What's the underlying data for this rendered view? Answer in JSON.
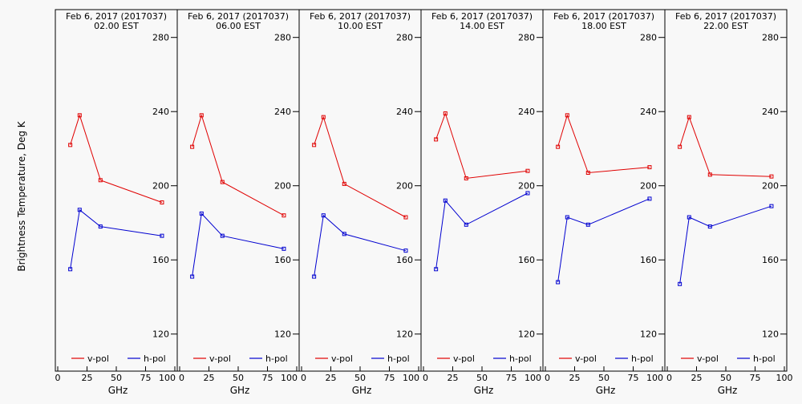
{
  "figure": {
    "ylabel": "Brightness Temperature, Deg K",
    "background": "#f8f8f8",
    "axis_color": "#000000"
  },
  "chart_data": [
    {
      "type": "line",
      "title_date": "Feb  6, 2017 (2017037)",
      "title_time": "02.00 EST",
      "xlabel": "GHz",
      "xlim": [
        0,
        100
      ],
      "ylim": [
        100,
        295
      ],
      "xticks": [
        "0",
        "25",
        "50",
        "75",
        "100"
      ],
      "yticks": [
        "120",
        "160",
        "200",
        "240",
        "280"
      ],
      "legend_position": "bottom",
      "x": [
        10.7,
        18.7,
        36.5,
        89.0
      ],
      "series": [
        {
          "name": "v-pol",
          "color": "#e00000",
          "values": [
            222,
            238,
            203,
            191
          ]
        },
        {
          "name": "h-pol",
          "color": "#0000d0",
          "values": [
            155,
            187,
            178,
            173
          ]
        }
      ]
    },
    {
      "type": "line",
      "title_date": "Feb  6, 2017 (2017037)",
      "title_time": "06.00 EST",
      "xlabel": "GHz",
      "xlim": [
        0,
        100
      ],
      "ylim": [
        100,
        295
      ],
      "xticks": [
        "0",
        "25",
        "50",
        "75",
        "100"
      ],
      "yticks": [
        "120",
        "160",
        "200",
        "240",
        "280"
      ],
      "legend_position": "bottom",
      "x": [
        10.7,
        18.7,
        36.5,
        89.0
      ],
      "series": [
        {
          "name": "v-pol",
          "color": "#e00000",
          "values": [
            221,
            238,
            202,
            184
          ]
        },
        {
          "name": "h-pol",
          "color": "#0000d0",
          "values": [
            151,
            185,
            173,
            166
          ]
        }
      ]
    },
    {
      "type": "line",
      "title_date": "Feb  6, 2017 (2017037)",
      "title_time": "10.00 EST",
      "xlabel": "GHz",
      "xlim": [
        0,
        100
      ],
      "ylim": [
        100,
        295
      ],
      "xticks": [
        "0",
        "25",
        "50",
        "75",
        "100"
      ],
      "yticks": [
        "120",
        "160",
        "200",
        "240",
        "280"
      ],
      "legend_position": "bottom",
      "x": [
        10.7,
        18.7,
        36.5,
        89.0
      ],
      "series": [
        {
          "name": "v-pol",
          "color": "#e00000",
          "values": [
            222,
            237,
            201,
            183
          ]
        },
        {
          "name": "h-pol",
          "color": "#0000d0",
          "values": [
            151,
            184,
            174,
            165
          ]
        }
      ]
    },
    {
      "type": "line",
      "title_date": "Feb  6, 2017 (2017037)",
      "title_time": "14.00 EST",
      "xlabel": "GHz",
      "xlim": [
        0,
        100
      ],
      "ylim": [
        100,
        295
      ],
      "xticks": [
        "0",
        "25",
        "50",
        "75",
        "100"
      ],
      "yticks": [
        "120",
        "160",
        "200",
        "240",
        "280"
      ],
      "legend_position": "bottom",
      "x": [
        10.7,
        18.7,
        36.5,
        89.0
      ],
      "series": [
        {
          "name": "v-pol",
          "color": "#e00000",
          "values": [
            225,
            239,
            204,
            208
          ]
        },
        {
          "name": "h-pol",
          "color": "#0000d0",
          "values": [
            155,
            192,
            179,
            196
          ]
        }
      ]
    },
    {
      "type": "line",
      "title_date": "Feb  6, 2017 (2017037)",
      "title_time": "18.00 EST",
      "xlabel": "GHz",
      "xlim": [
        0,
        100
      ],
      "ylim": [
        100,
        295
      ],
      "xticks": [
        "0",
        "25",
        "50",
        "75",
        "100"
      ],
      "yticks": [
        "120",
        "160",
        "200",
        "240",
        "280"
      ],
      "legend_position": "bottom",
      "x": [
        10.7,
        18.7,
        36.5,
        89.0
      ],
      "series": [
        {
          "name": "v-pol",
          "color": "#e00000",
          "values": [
            221,
            238,
            207,
            210
          ]
        },
        {
          "name": "h-pol",
          "color": "#0000d0",
          "values": [
            148,
            183,
            179,
            193
          ]
        }
      ]
    },
    {
      "type": "line",
      "title_date": "Feb  6, 2017 (2017037)",
      "title_time": "22.00 EST",
      "xlabel": "GHz",
      "xlim": [
        0,
        100
      ],
      "ylim": [
        100,
        295
      ],
      "xticks": [
        "0",
        "25",
        "50",
        "75",
        "100"
      ],
      "yticks": [
        "120",
        "160",
        "200",
        "240",
        "280"
      ],
      "legend_position": "bottom",
      "x": [
        10.7,
        18.7,
        36.5,
        89.0
      ],
      "series": [
        {
          "name": "v-pol",
          "color": "#e00000",
          "values": [
            221,
            237,
            206,
            205
          ]
        },
        {
          "name": "h-pol",
          "color": "#0000d0",
          "values": [
            147,
            183,
            178,
            189
          ]
        }
      ]
    }
  ]
}
